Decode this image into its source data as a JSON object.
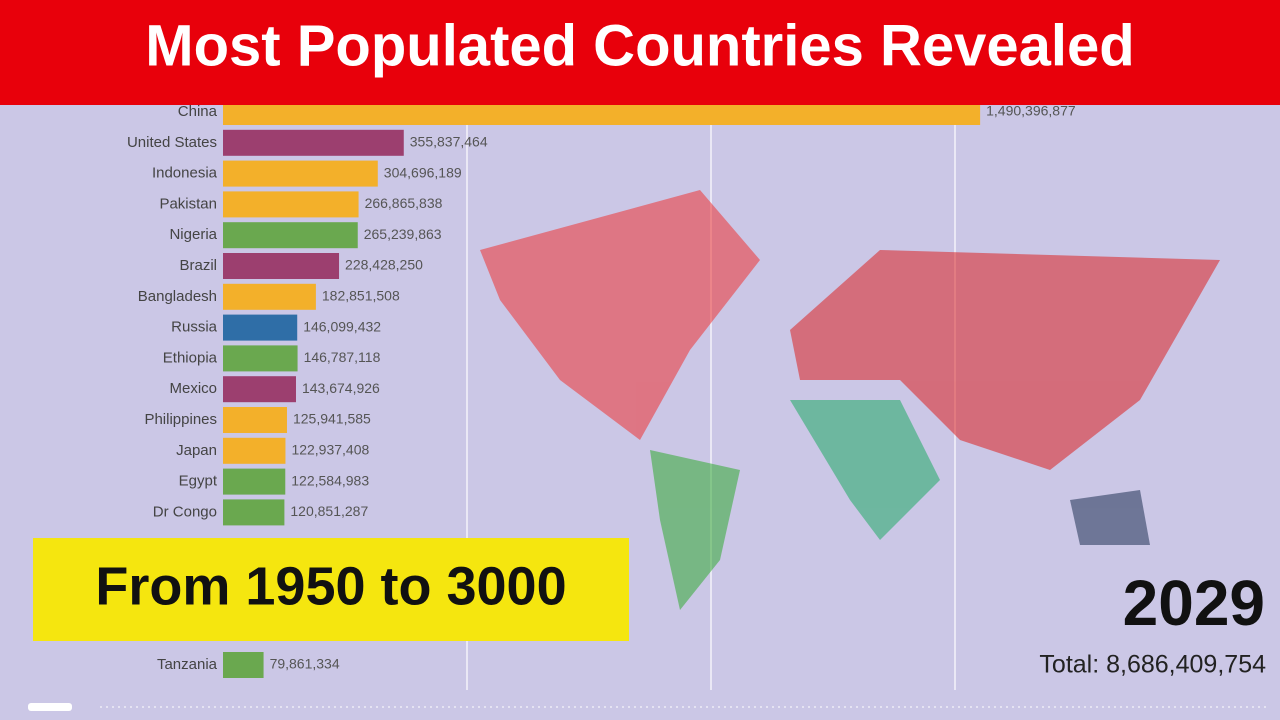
{
  "chart_data": {
    "type": "bar",
    "orientation": "horizontal",
    "title": "Most Populated Countries Revealed",
    "subtitle": "From 1950 to 3000",
    "year": "2029",
    "total": "Total: 8,686,409,754",
    "categories": [
      "China",
      "United States",
      "Indonesia",
      "Pakistan",
      "Nigeria",
      "Brazil",
      "Bangladesh",
      "Russia",
      "Ethiopia",
      "Mexico",
      "Philippines",
      "Japan",
      "Egypt",
      "Dr Congo",
      "Tanzania"
    ],
    "values": [
      1490396877,
      355837464,
      304696189,
      266865838,
      265239863,
      228428250,
      182851508,
      146099432,
      146787118,
      143674926,
      125941585,
      122937408,
      122584983,
      120851287,
      79861334
    ],
    "value_labels": [
      "1,490,396,877",
      "355,837,464",
      "304,696,189",
      "266,865,838",
      "265,239,863",
      "228,428,250",
      "182,851,508",
      "146,099,432",
      "146,787,118",
      "143,674,926",
      "125,941,585",
      "122,937,408",
      "122,584,983",
      "120,851,287",
      "79,861,334"
    ],
    "colors": [
      "#f3b02a",
      "#9c3f6f",
      "#f3b02a",
      "#f3b02a",
      "#6aa84f",
      "#9c3f6f",
      "#f3b02a",
      "#2f6ea7",
      "#6aa84f",
      "#9c3f6f",
      "#f3b02a",
      "#f3b02a",
      "#6aa84f",
      "#6aa84f",
      "#6aa84f"
    ],
    "xlim": [
      0,
      1500000000
    ]
  }
}
